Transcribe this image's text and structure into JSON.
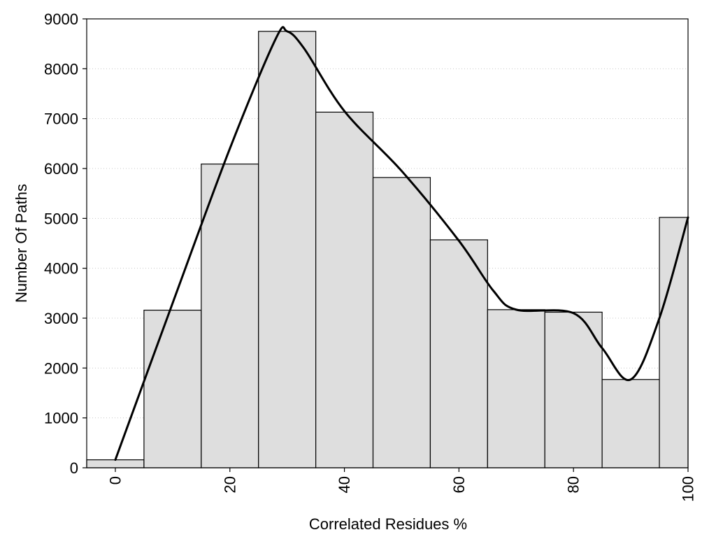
{
  "chart_data": {
    "type": "bar",
    "title": "",
    "xlabel": "Correlated Residues %",
    "ylabel": "Number Of Paths",
    "bin_width": 10,
    "categories": [
      0,
      10,
      20,
      30,
      40,
      50,
      60,
      70,
      80,
      90,
      100
    ],
    "values": [
      160,
      3160,
      6090,
      8750,
      7130,
      5820,
      4570,
      3170,
      3120,
      1770,
      5020
    ],
    "xlim": [
      -5,
      100
    ],
    "ylim": [
      0,
      9000
    ],
    "x_ticks": [
      0,
      20,
      40,
      60,
      80,
      100
    ],
    "x_tick_labels": [
      "0",
      "20",
      "40",
      "60",
      "80",
      "100"
    ],
    "y_ticks": [
      0,
      1000,
      2000,
      3000,
      4000,
      5000,
      6000,
      7000,
      8000,
      9000
    ],
    "y_tick_labels": [
      "0",
      "1000",
      "2000",
      "3000",
      "4000",
      "5000",
      "6000",
      "7000",
      "8000",
      "9000"
    ],
    "grid": "horizontal dotted",
    "bar_color": "#dedede",
    "smooth_curve": {
      "x": [
        0,
        10,
        20,
        28,
        30,
        33,
        40,
        50,
        60,
        66,
        70,
        80,
        85,
        90,
        95,
        100
      ],
      "y": [
        160,
        3300,
        6400,
        8600,
        8750,
        8400,
        7150,
        5950,
        4550,
        3550,
        3170,
        3100,
        2400,
        1770,
        3000,
        5020
      ]
    }
  }
}
